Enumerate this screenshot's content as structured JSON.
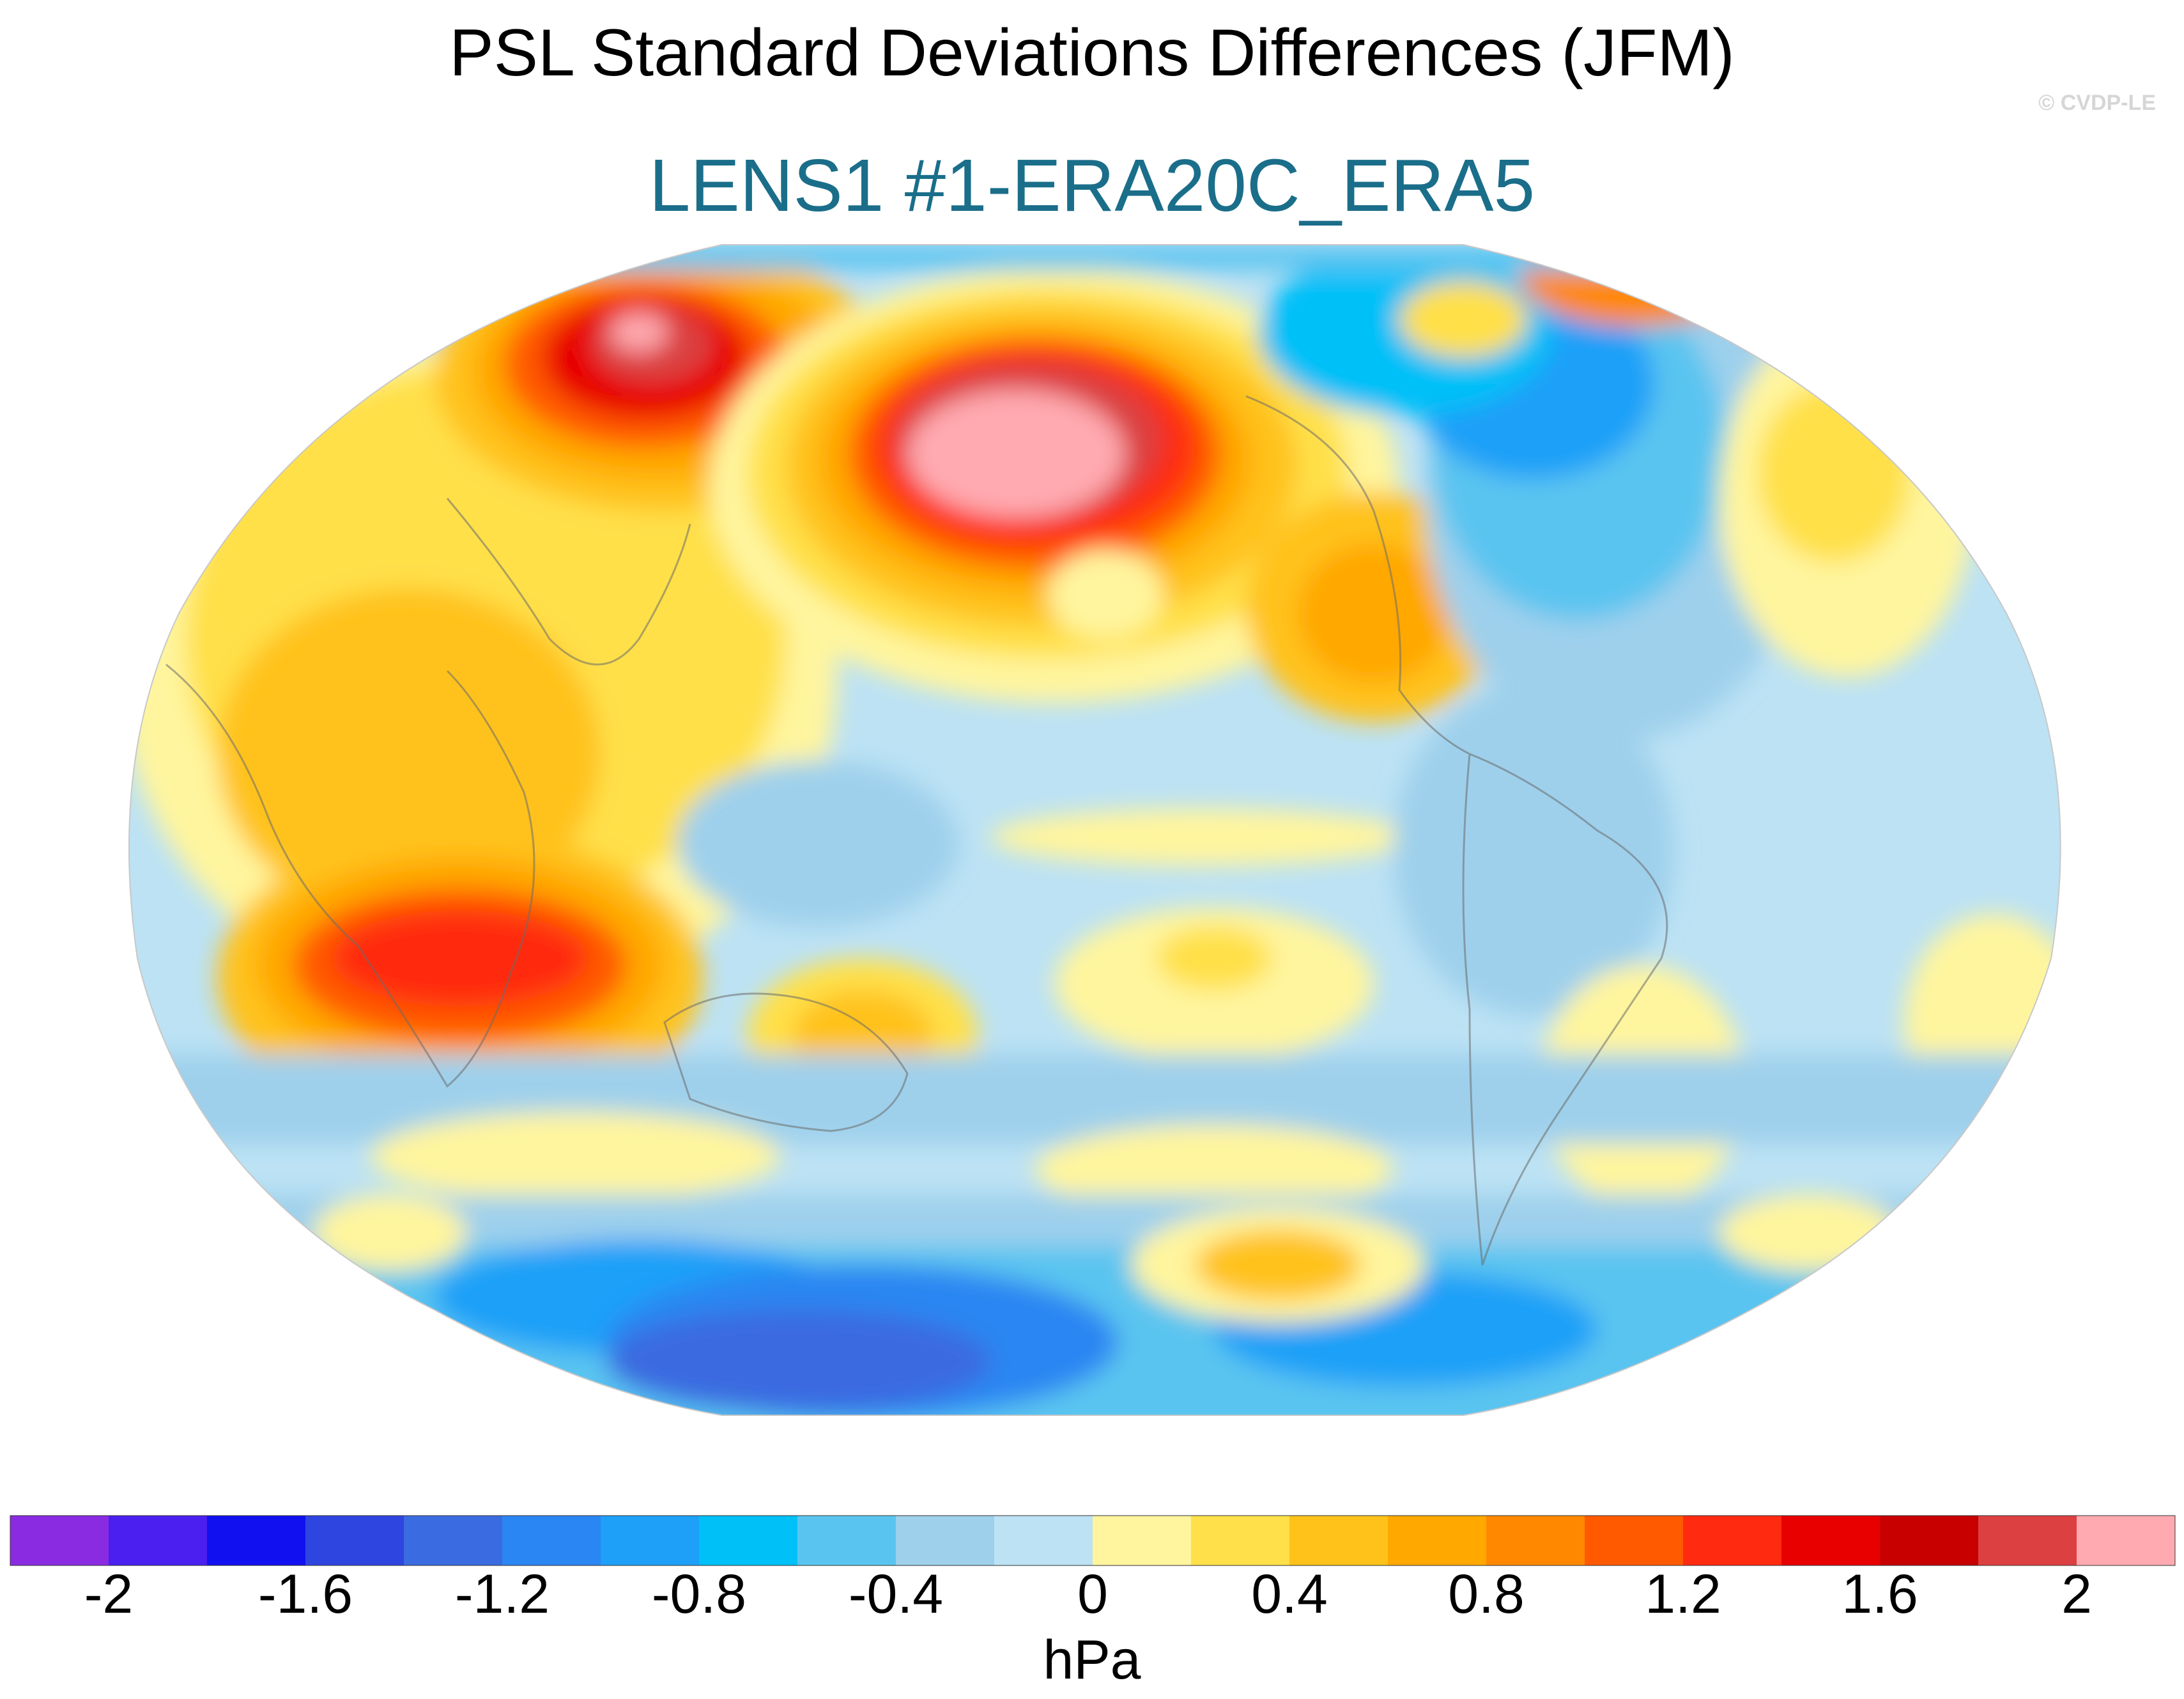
{
  "title": "PSL Standard Deviations Differences (JFM)",
  "subtitle": "LENS1 #1-ERA20C_ERA5",
  "credit": "© CVDP-LE",
  "colors": {
    "subtitle": "#1a6e8a",
    "scale": [
      "#8a2be2",
      "#4a1ff0",
      "#1010f0",
      "#2e45e0",
      "#3a6be0",
      "#2a86f2",
      "#1ea0f8",
      "#00c0f8",
      "#5ac4f0",
      "#9ed0ec",
      "#bce2f4",
      "#fff59e",
      "#ffe04a",
      "#ffc21a",
      "#ffa800",
      "#ff8800",
      "#ff5a00",
      "#ff2a10",
      "#e80000",
      "#c80000",
      "#dc4040",
      "#ffaab0"
    ]
  },
  "colorbar": {
    "min": -2.2,
    "max": 2.2,
    "step": 0.2,
    "tick_labels": [
      "-2",
      "-1.6",
      "-1.2",
      "-0.8",
      "-0.4",
      "0",
      "0.4",
      "0.8",
      "1.2",
      "1.6",
      "2"
    ],
    "units": "hPa"
  },
  "map": {
    "projection": "Robinson (Pacific-centred)",
    "field": "PSL standard deviation difference",
    "coastlines": "gray"
  }
}
